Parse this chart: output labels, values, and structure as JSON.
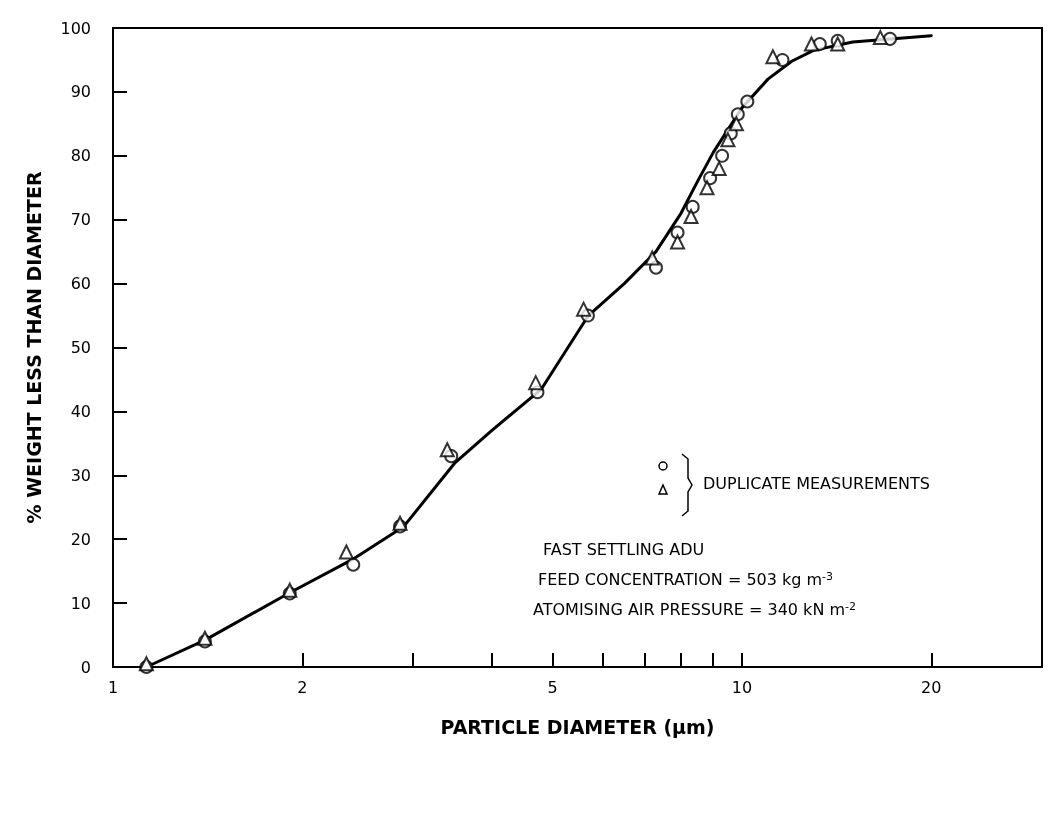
{
  "chart_data": {
    "type": "scatter",
    "xlabel": "PARTICLE DIAMETER (μm)",
    "ylabel": "% WEIGHT LESS THAN DIAMETER",
    "log": "x",
    "grid": false,
    "xlim": [
      1,
      30
    ],
    "xticks": [
      1,
      2,
      {
        "value": 3,
        "label": null
      },
      {
        "value": 4,
        "label": null
      },
      5,
      {
        "value": 6,
        "label": null
      },
      {
        "value": 7,
        "label": null
      },
      {
        "value": 8,
        "label": null
      },
      {
        "value": 9,
        "label": null
      },
      10,
      20
    ],
    "ylim": [
      0,
      100
    ],
    "yticks": [
      0,
      10,
      20,
      30,
      40,
      50,
      60,
      70,
      80,
      90,
      100
    ],
    "series": [
      {
        "marker": "circle",
        "color": "#000000",
        "x": [
          1.13,
          1.4,
          1.91,
          2.41,
          2.86,
          3.45,
          4.73,
          5.69,
          7.3,
          7.9,
          8.35,
          8.9,
          9.3,
          9.6,
          9.85,
          10.2,
          11.6,
          13.3,
          14.2,
          17.2
        ],
        "values": [
          0,
          4,
          11.5,
          16,
          22,
          33,
          43,
          55,
          62.5,
          68,
          72,
          76.5,
          80,
          83.5,
          86.5,
          88.5,
          95,
          97.5,
          98,
          98.3
        ]
      },
      {
        "marker": "triangle",
        "color": "#000000",
        "x": [
          1.13,
          1.4,
          1.91,
          2.35,
          2.86,
          3.4,
          4.7,
          5.6,
          7.2,
          7.9,
          8.3,
          8.8,
          9.2,
          9.5,
          9.8,
          11.2,
          12.9,
          14.2,
          16.6
        ],
        "values": [
          0.5,
          4.5,
          12,
          18,
          22.5,
          34,
          44.5,
          56,
          64,
          66.5,
          70.5,
          75,
          78,
          82.5,
          85,
          95.5,
          97.5,
          97.5,
          98.5
        ]
      },
      {
        "type": "line",
        "marker": "none",
        "line_style": "solid",
        "color": "#000000",
        "x": [
          1.13,
          1.4,
          1.9,
          2.4,
          2.9,
          3.5,
          4,
          4.8,
          5.7,
          6.5,
          7.3,
          8,
          8.5,
          9,
          10,
          11,
          12,
          13,
          15,
          20
        ],
        "values": [
          0,
          4.2,
          11.5,
          16.8,
          22,
          32,
          37,
          43.5,
          55,
          60,
          65,
          71,
          76,
          80.5,
          87.5,
          92,
          94.8,
          96.5,
          97.8,
          98.8
        ]
      }
    ],
    "annotations": [
      "DUPLICATE MEASUREMENTS",
      "FAST SETTLING ADU",
      "FEED CONCENTRATION = 503 kg m$^{-3}$",
      "ATOMISING AIR PRESSURE = 340 kN m$^{-2}$"
    ]
  }
}
